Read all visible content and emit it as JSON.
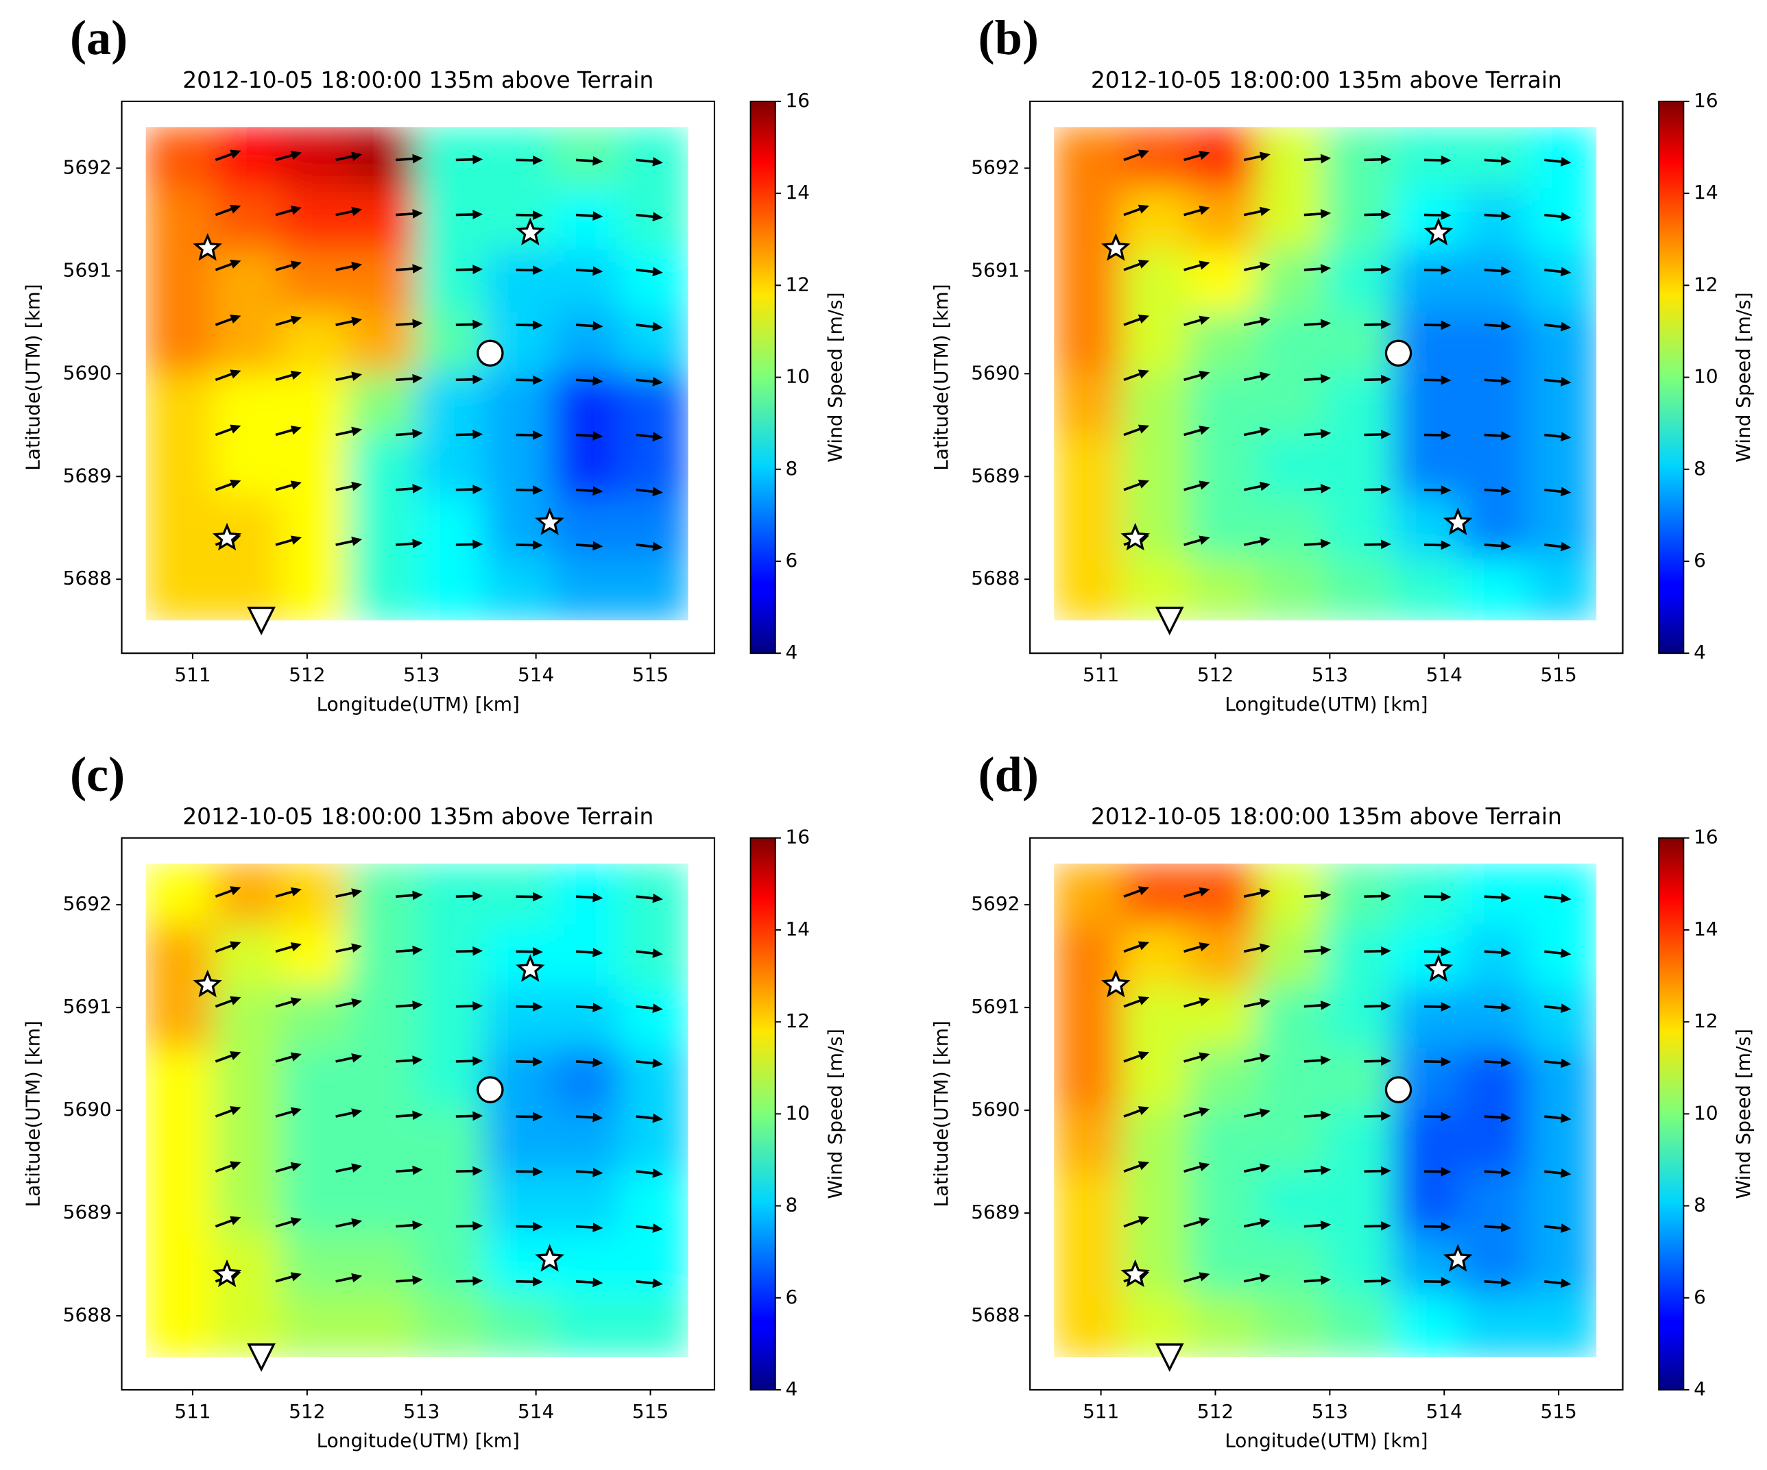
{
  "chart_data": [
    {
      "type": "heatmap",
      "panel_label": "(a)",
      "title": "2012-10-05 18:00:00 135m above Terrain",
      "xlabel": "Longitude(UTM) [km]",
      "ylabel": "Latitude(UTM) [km]",
      "colorbar_label": "Wind Speed [m/s]",
      "colormap": "jet",
      "xlim": [
        510.38,
        515.56
      ],
      "ylim": [
        5687.28,
        5692.65
      ],
      "xticks": [
        511,
        512,
        513,
        514,
        515
      ],
      "yticks": [
        5688,
        5689,
        5690,
        5691,
        5692
      ],
      "clim": [
        4,
        16
      ],
      "cticks": [
        4,
        6,
        8,
        10,
        12,
        14,
        16
      ],
      "field_x": [
        510.59,
        515.33
      ],
      "field_y": [
        5687.6,
        5692.4
      ],
      "values": [
        [
          13.5,
          14.5,
          15,
          15.5,
          9,
          9,
          9.5,
          9
        ],
        [
          13,
          13.5,
          14,
          14,
          9,
          9,
          8.5,
          9
        ],
        [
          13,
          12.5,
          13,
          13,
          9,
          8,
          8,
          8.5
        ],
        [
          13,
          12.5,
          12,
          12.5,
          9.5,
          8,
          7.5,
          8
        ],
        [
          12,
          11.5,
          11.5,
          10,
          8,
          7.5,
          6,
          6.5
        ],
        [
          12,
          11.5,
          11.5,
          9,
          8,
          7.5,
          6,
          6.5
        ],
        [
          12,
          12,
          11.5,
          9,
          8.5,
          7.5,
          7,
          7
        ],
        [
          12,
          12,
          11.5,
          9,
          8.5,
          8,
          7.5,
          7.5
        ]
      ],
      "points": [
        {
          "marker": "star",
          "x": 511.13,
          "y": 5691.22
        },
        {
          "marker": "star",
          "x": 511.3,
          "y": 5688.4
        },
        {
          "marker": "star",
          "x": 513.95,
          "y": 5691.37
        },
        {
          "marker": "star",
          "x": 514.12,
          "y": 5688.55
        },
        {
          "marker": "circle",
          "x": 513.6,
          "y": 5690.2
        },
        {
          "marker": "triangle",
          "x": 511.6,
          "y": 5687.6
        }
      ]
    },
    {
      "type": "heatmap",
      "panel_label": "(b)",
      "title": "2012-10-05 18:00:00 135m above Terrain",
      "xlabel": "Longitude(UTM) [km]",
      "ylabel": "Latitude(UTM) [km]",
      "colorbar_label": "Wind Speed [m/s]",
      "colormap": "jet",
      "xlim": [
        510.38,
        515.56
      ],
      "ylim": [
        5687.28,
        5692.65
      ],
      "xticks": [
        511,
        512,
        513,
        514,
        515
      ],
      "yticks": [
        5688,
        5689,
        5690,
        5691,
        5692
      ],
      "clim": [
        4,
        16
      ],
      "cticks": [
        4,
        6,
        8,
        10,
        12,
        14,
        16
      ],
      "field_x": [
        510.59,
        515.33
      ],
      "field_y": [
        5687.6,
        5692.4
      ],
      "values": [
        [
          13,
          13.5,
          14,
          11,
          9.5,
          9,
          9,
          8.5
        ],
        [
          13,
          12,
          12.5,
          11,
          9.5,
          8.5,
          8,
          8.5
        ],
        [
          13,
          11,
          11.5,
          10,
          9,
          7.5,
          7.5,
          8
        ],
        [
          13,
          11,
          10,
          9.5,
          9.5,
          7,
          7,
          7.5
        ],
        [
          12.5,
          10.5,
          9.5,
          9.5,
          9,
          7,
          7,
          7.5
        ],
        [
          12,
          10.5,
          9.5,
          9,
          9,
          7,
          7,
          7.5
        ],
        [
          12,
          10.5,
          9.5,
          9.5,
          9,
          8,
          7,
          7.5
        ],
        [
          12,
          11,
          10.5,
          10,
          9.5,
          9,
          8.5,
          8
        ]
      ],
      "points": [
        {
          "marker": "star",
          "x": 511.13,
          "y": 5691.22
        },
        {
          "marker": "star",
          "x": 511.3,
          "y": 5688.4
        },
        {
          "marker": "star",
          "x": 513.95,
          "y": 5691.37
        },
        {
          "marker": "star",
          "x": 514.12,
          "y": 5688.55
        },
        {
          "marker": "circle",
          "x": 513.6,
          "y": 5690.2
        },
        {
          "marker": "triangle",
          "x": 511.6,
          "y": 5687.6
        }
      ]
    },
    {
      "type": "heatmap",
      "panel_label": "(c)",
      "title": "2012-10-05 18:00:00 135m above Terrain",
      "xlabel": "Longitude(UTM) [km]",
      "ylabel": "Latitude(UTM) [km]",
      "colorbar_label": "Wind Speed [m/s]",
      "colormap": "jet",
      "xlim": [
        510.38,
        515.56
      ],
      "ylim": [
        5687.28,
        5692.65
      ],
      "xticks": [
        511,
        512,
        513,
        514,
        515
      ],
      "yticks": [
        5688,
        5689,
        5690,
        5691,
        5692
      ],
      "clim": [
        4,
        16
      ],
      "cticks": [
        4,
        6,
        8,
        10,
        12,
        14,
        16
      ],
      "field_x": [
        510.59,
        515.33
      ],
      "field_y": [
        5687.6,
        5692.4
      ],
      "values": [
        [
          11.5,
          12.5,
          12,
          9.5,
          9,
          9,
          8.5,
          9
        ],
        [
          12.5,
          11,
          11.5,
          9.5,
          9,
          8.5,
          8.5,
          9
        ],
        [
          12.5,
          10.5,
          10,
          9.5,
          9,
          8,
          8,
          8.5
        ],
        [
          11.5,
          10.5,
          9.5,
          9.5,
          9,
          7.5,
          7,
          8
        ],
        [
          11.5,
          10.5,
          9.5,
          9.5,
          9.5,
          7.5,
          7.5,
          8
        ],
        [
          11.5,
          10.5,
          9.5,
          9.5,
          9.5,
          8,
          8,
          8.5
        ],
        [
          11.5,
          11,
          10,
          10,
          9.5,
          8.5,
          8.5,
          8.5
        ],
        [
          11.5,
          11,
          10.5,
          10.5,
          10,
          9.5,
          9,
          9
        ]
      ],
      "points": [
        {
          "marker": "star",
          "x": 511.13,
          "y": 5691.22
        },
        {
          "marker": "star",
          "x": 511.3,
          "y": 5688.4
        },
        {
          "marker": "star",
          "x": 513.95,
          "y": 5691.37
        },
        {
          "marker": "star",
          "x": 514.12,
          "y": 5688.55
        },
        {
          "marker": "circle",
          "x": 513.6,
          "y": 5690.2
        },
        {
          "marker": "triangle",
          "x": 511.6,
          "y": 5687.6
        }
      ]
    },
    {
      "type": "heatmap",
      "panel_label": "(d)",
      "title": "2012-10-05 18:00:00 135m above Terrain",
      "xlabel": "Longitude(UTM) [km]",
      "ylabel": "Latitude(UTM) [km]",
      "colorbar_label": "Wind Speed [m/s]",
      "colormap": "jet",
      "xlim": [
        510.38,
        515.56
      ],
      "ylim": [
        5687.28,
        5692.65
      ],
      "xticks": [
        511,
        512,
        513,
        514,
        515
      ],
      "yticks": [
        5688,
        5689,
        5690,
        5691,
        5692
      ],
      "clim": [
        4,
        16
      ],
      "cticks": [
        4,
        6,
        8,
        10,
        12,
        14,
        16
      ],
      "field_x": [
        510.59,
        515.33
      ],
      "field_y": [
        5687.6,
        5692.4
      ],
      "values": [
        [
          12.5,
          13.5,
          13.5,
          11,
          9.5,
          9,
          8.5,
          8.5
        ],
        [
          13,
          12,
          12.5,
          10.5,
          9,
          8.5,
          8,
          8.5
        ],
        [
          13,
          11,
          11,
          9.5,
          9,
          7.5,
          7.5,
          8
        ],
        [
          13,
          11,
          10,
          9.5,
          9.5,
          7,
          6.5,
          7.5
        ],
        [
          12.5,
          10.5,
          9.5,
          9.5,
          9,
          6.5,
          6.5,
          7.5
        ],
        [
          12,
          10.5,
          9.5,
          9,
          9,
          6.5,
          7,
          7.5
        ],
        [
          12,
          10.5,
          9.5,
          9.5,
          9,
          7.5,
          7,
          7.5
        ],
        [
          12,
          11,
          10.5,
          10,
          9.5,
          8.5,
          8,
          8
        ]
      ],
      "points": [
        {
          "marker": "star",
          "x": 511.13,
          "y": 5691.22
        },
        {
          "marker": "star",
          "x": 511.3,
          "y": 5688.4
        },
        {
          "marker": "star",
          "x": 513.95,
          "y": 5691.37
        },
        {
          "marker": "star",
          "x": 514.12,
          "y": 5688.55
        },
        {
          "marker": "circle",
          "x": 513.6,
          "y": 5690.2
        },
        {
          "marker": "triangle",
          "x": 511.6,
          "y": 5687.6
        }
      ]
    }
  ]
}
